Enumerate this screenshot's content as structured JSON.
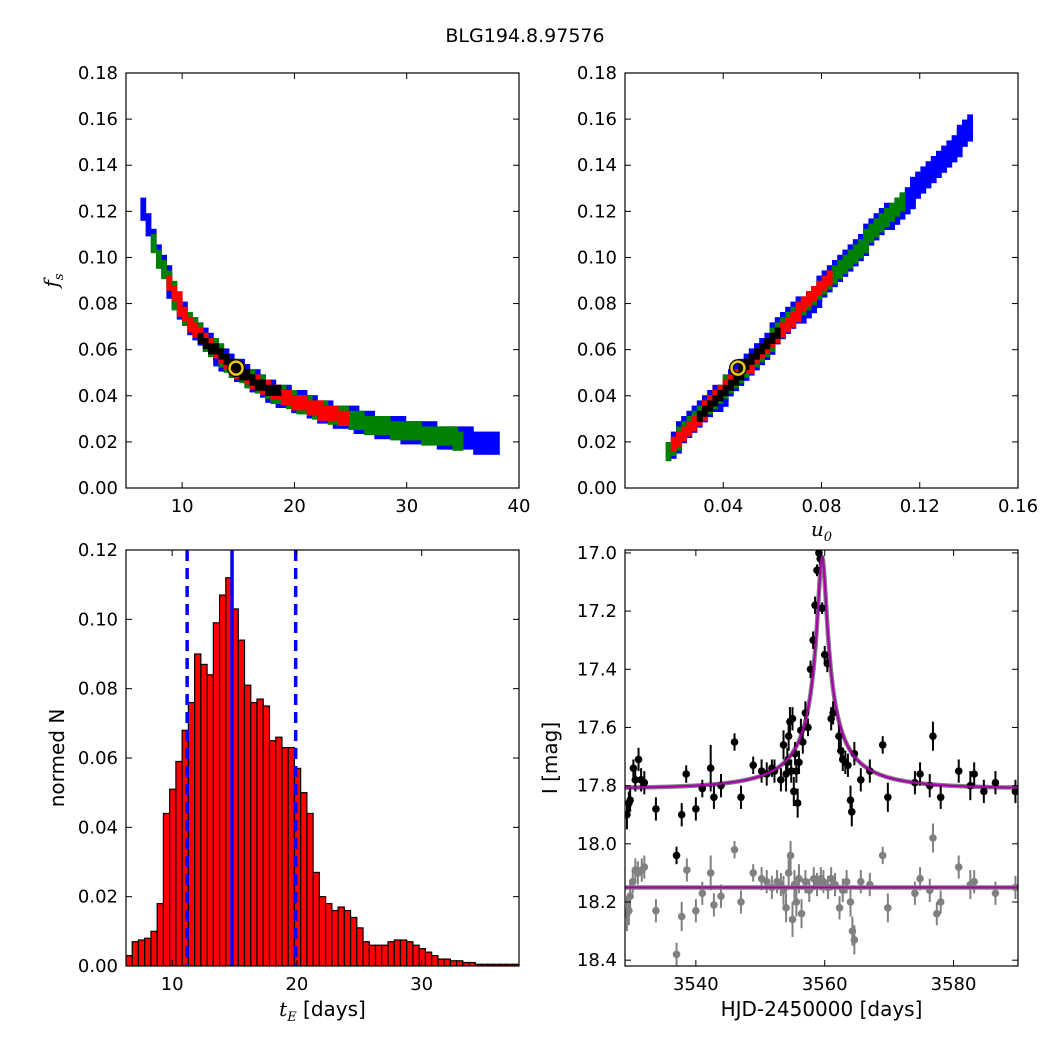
{
  "figure": {
    "title": "BLG194.8.97576"
  },
  "colors": {
    "c1": "#0000ff",
    "c2": "#008000",
    "c3": "#ff0000",
    "c4": "#000000",
    "best": "#e6c619",
    "hist": "#ff0000",
    "line": "#0000ff",
    "model": "#aa00aa",
    "model_under": "#808080",
    "ogle": "#000000",
    "base": "#808080"
  },
  "chart_data": [
    {
      "id": "fs_vs_tE",
      "type": "heatmap",
      "xlabel": "",
      "ylabel": {
        "math": "f",
        "sub": "s"
      },
      "xlim": [
        5,
        40
      ],
      "ylim": [
        0,
        0.18
      ],
      "xticks": [
        10,
        20,
        30,
        40
      ],
      "xtick_labels": [
        "10",
        "20",
        "30",
        "40"
      ],
      "yticks": [
        0,
        0.02,
        0.04,
        0.06,
        0.08,
        0.1,
        0.12,
        0.14,
        0.16,
        0.18
      ],
      "ytick_labels": [
        "0.00",
        "0.02",
        "0.04",
        "0.06",
        "0.08",
        "0.10",
        "0.12",
        "0.14",
        "0.16",
        "0.18"
      ],
      "contour_levels": [
        "c1",
        "c2",
        "c3",
        "c4"
      ],
      "contour_relation": "f_s * t_E = 0.77",
      "contour_x_ranges": {
        "c1": [
          6.3,
          37.6
        ],
        "c2": [
          7.2,
          35.0
        ],
        "c3": [
          8.5,
          24.5
        ],
        "c4": [
          11.5,
          18.5
        ]
      },
      "best_fit": {
        "x": 14.8,
        "y": 0.052
      }
    },
    {
      "id": "fs_vs_u0",
      "type": "heatmap",
      "xlabel": {
        "math": "u",
        "sub": "0"
      },
      "ylabel": "",
      "xlim": [
        0,
        0.16
      ],
      "ylim": [
        0,
        0.18
      ],
      "xticks": [
        0.04,
        0.08,
        0.12,
        0.16
      ],
      "xtick_labels": [
        "0.04",
        "0.08",
        "0.12",
        "0.16"
      ],
      "yticks": [
        0,
        0.02,
        0.04,
        0.06,
        0.08,
        0.1,
        0.12,
        0.14,
        0.16,
        0.18
      ],
      "ytick_labels": [
        "0.00",
        "0.02",
        "0.04",
        "0.06",
        "0.08",
        "0.10",
        "0.12",
        "0.14",
        "0.16",
        "0.18"
      ],
      "contour_levels": [
        "c1",
        "c2",
        "c3",
        "c4"
      ],
      "contour_relation": "f_s = 1.12 * u_0 - 0.0005",
      "contour_x_ranges": {
        "c1": [
          0.018,
          0.141
        ],
        "c2": [
          0.016,
          0.112
        ],
        "c3": [
          0.019,
          0.082
        ],
        "c4": [
          0.03,
          0.062
        ]
      },
      "best_fit": {
        "x": 0.046,
        "y": 0.052
      }
    },
    {
      "id": "tE_histogram",
      "type": "bar",
      "xlabel": {
        "math": "t",
        "sub": "E",
        "suffix": " [days]"
      },
      "ylabel": "normed N",
      "xlim": [
        6.3,
        37.8
      ],
      "ylim": [
        0,
        0.12
      ],
      "xticks": [
        10,
        20,
        30
      ],
      "xtick_labels": [
        "10",
        "20",
        "30"
      ],
      "yticks": [
        0,
        0.02,
        0.04,
        0.06,
        0.08,
        0.1,
        0.12
      ],
      "ytick_labels": [
        "0.00",
        "0.02",
        "0.04",
        "0.06",
        "0.08",
        "0.10",
        "0.12"
      ],
      "bin_start": 6.3,
      "bin_width": 0.5,
      "values": [
        0.003,
        0.007,
        0.0075,
        0.008,
        0.01,
        0.018,
        0.044,
        0.051,
        0.059,
        0.068,
        0.076,
        0.09,
        0.087,
        0.084,
        0.099,
        0.107,
        0.112,
        0.103,
        0.094,
        0.081,
        0.076,
        0.077,
        0.075,
        0.065,
        0.066,
        0.063,
        0.063,
        0.057,
        0.05,
        0.044,
        0.027,
        0.02,
        0.018,
        0.016,
        0.017,
        0.016,
        0.014,
        0.011,
        0.007,
        0.006,
        0.006,
        0.006,
        0.007,
        0.0075,
        0.0075,
        0.007,
        0.006,
        0.005,
        0.004,
        0.003,
        0.002,
        0.002,
        0.0015,
        0.0015,
        0.001,
        0.001,
        0.0005,
        0.0005,
        0.0005,
        0.0005,
        0.0005,
        0.0005,
        0.0005
      ],
      "vlines": [
        {
          "x": 14.8,
          "style": "solid"
        },
        {
          "x": 11.2,
          "style": "dashed"
        },
        {
          "x": 19.9,
          "style": "dashed"
        }
      ]
    },
    {
      "id": "lightcurve",
      "type": "scatter",
      "xlabel": "HJD-2450000 [days]",
      "ylabel": "I [mag]",
      "xlim": [
        3529,
        3590
      ],
      "ylim": [
        18.42,
        16.99
      ],
      "xticks": [
        3540,
        3560,
        3580
      ],
      "xtick_labels": [
        "3540",
        "3560",
        "3580"
      ],
      "yticks": [
        17.0,
        17.2,
        17.4,
        17.6,
        17.8,
        18.0,
        18.2,
        18.4
      ],
      "ytick_labels": [
        "17.0",
        "17.2",
        "17.4",
        "17.6",
        "17.8",
        "18.0",
        "18.2",
        "18.4"
      ],
      "model": {
        "t0": 3559.6,
        "u0": 0.046,
        "tE": 14.8,
        "baseline": 17.81
      },
      "baseline_model": 18.15,
      "series": [
        {
          "role": "ogle",
          "points": [
            [
              3529.3,
              17.9,
              0.05
            ],
            [
              3529.6,
              17.86,
              0.04
            ],
            [
              3529.8,
              17.85,
              0.04
            ],
            [
              3530.3,
              17.74,
              0.03
            ],
            [
              3530.6,
              17.78,
              0.04
            ],
            [
              3531.1,
              17.71,
              0.04
            ],
            [
              3531.5,
              17.78,
              0.04
            ],
            [
              3532.0,
              17.79,
              0.04
            ],
            [
              3533.8,
              17.88,
              0.04
            ],
            [
              3537.0,
              18.04,
              0.03
            ],
            [
              3537.8,
              17.9,
              0.04
            ],
            [
              3538.5,
              17.76,
              0.03
            ],
            [
              3540.0,
              17.88,
              0.04
            ],
            [
              3541.0,
              17.81,
              0.03
            ],
            [
              3542.3,
              17.74,
              0.08
            ],
            [
              3542.8,
              17.84,
              0.04
            ],
            [
              3543.9,
              17.8,
              0.04
            ],
            [
              3546.0,
              17.65,
              0.03
            ],
            [
              3547.0,
              17.84,
              0.04
            ],
            [
              3548.9,
              17.73,
              0.03
            ],
            [
              3550.2,
              17.75,
              0.04
            ],
            [
              3551.0,
              17.76,
              0.04
            ],
            [
              3551.8,
              17.74,
              0.03
            ],
            [
              3552.2,
              17.75,
              0.04
            ],
            [
              3553.2,
              17.78,
              0.04
            ],
            [
              3553.6,
              17.66,
              0.05
            ],
            [
              3554.0,
              17.76,
              0.06
            ],
            [
              3554.2,
              17.72,
              0.05
            ],
            [
              3554.4,
              17.63,
              0.05
            ],
            [
              3554.6,
              17.58,
              0.05
            ],
            [
              3554.8,
              17.75,
              0.04
            ],
            [
              3555.0,
              17.57,
              0.04
            ],
            [
              3555.2,
              17.82,
              0.05
            ],
            [
              3555.4,
              17.69,
              0.04
            ],
            [
              3555.6,
              17.75,
              0.04
            ],
            [
              3555.8,
              17.86,
              0.05
            ],
            [
              3556.0,
              17.72,
              0.04
            ],
            [
              3556.3,
              17.61,
              0.04
            ],
            [
              3556.6,
              17.65,
              0.04
            ],
            [
              3557.0,
              17.55,
              0.04
            ],
            [
              3557.4,
              17.6,
              0.03
            ],
            [
              3557.8,
              17.4,
              0.03
            ],
            [
              3558.2,
              17.3,
              0.03
            ],
            [
              3558.5,
              17.18,
              0.03
            ],
            [
              3558.8,
              17.06,
              0.02
            ],
            [
              3559.1,
              17.0,
              0.02
            ],
            [
              3559.3,
              17.02,
              0.02
            ],
            [
              3559.6,
              17.19,
              0.02
            ],
            [
              3560.0,
              17.35,
              0.03
            ],
            [
              3560.4,
              17.38,
              0.03
            ],
            [
              3561.0,
              17.57,
              0.04
            ],
            [
              3561.3,
              17.55,
              0.04
            ],
            [
              3562.2,
              17.63,
              0.04
            ],
            [
              3562.5,
              17.68,
              0.04
            ],
            [
              3562.8,
              17.71,
              0.04
            ],
            [
              3563.2,
              17.72,
              0.04
            ],
            [
              3563.6,
              17.73,
              0.04
            ],
            [
              3564.0,
              17.85,
              0.05
            ],
            [
              3564.2,
              17.89,
              0.05
            ],
            [
              3564.6,
              17.69,
              0.04
            ],
            [
              3565.6,
              17.78,
              0.04
            ],
            [
              3567.0,
              17.75,
              0.04
            ],
            [
              3569.0,
              17.66,
              0.03
            ],
            [
              3569.8,
              17.84,
              0.05
            ],
            [
              3574.0,
              17.79,
              0.04
            ],
            [
              3574.8,
              17.76,
              0.04
            ],
            [
              3576.3,
              17.8,
              0.04
            ],
            [
              3576.8,
              17.63,
              0.05
            ],
            [
              3578.0,
              17.84,
              0.04
            ],
            [
              3580.8,
              17.75,
              0.04
            ],
            [
              3582.6,
              17.8,
              0.05
            ],
            [
              3583.2,
              17.76,
              0.04
            ],
            [
              3584.7,
              17.82,
              0.04
            ],
            [
              3586.5,
              17.79,
              0.04
            ],
            [
              3589.6,
              17.82,
              0.04
            ]
          ]
        },
        {
          "role": "base",
          "points": [
            [
              3529.3,
              18.24,
              0.06
            ],
            [
              3529.6,
              18.23,
              0.05
            ],
            [
              3529.8,
              18.18,
              0.05
            ],
            [
              3530.2,
              18.13,
              0.04
            ],
            [
              3530.6,
              18.09,
              0.04
            ],
            [
              3531.0,
              18.1,
              0.04
            ],
            [
              3531.6,
              18.09,
              0.04
            ],
            [
              3532.0,
              18.08,
              0.04
            ],
            [
              3533.8,
              18.23,
              0.04
            ],
            [
              3537.0,
              18.38,
              0.04
            ],
            [
              3537.8,
              18.25,
              0.05
            ],
            [
              3538.6,
              18.09,
              0.04
            ],
            [
              3540.0,
              18.23,
              0.04
            ],
            [
              3541.0,
              18.17,
              0.04
            ],
            [
              3542.3,
              18.1,
              0.06
            ],
            [
              3542.8,
              18.21,
              0.04
            ],
            [
              3543.9,
              18.18,
              0.04
            ],
            [
              3546.0,
              18.02,
              0.03
            ],
            [
              3547.0,
              18.2,
              0.04
            ],
            [
              3548.9,
              18.1,
              0.03
            ],
            [
              3550.2,
              18.12,
              0.04
            ],
            [
              3551.0,
              18.13,
              0.04
            ],
            [
              3551.8,
              18.15,
              0.04
            ],
            [
              3552.6,
              18.13,
              0.04
            ],
            [
              3553.2,
              18.14,
              0.04
            ],
            [
              3553.6,
              18.16,
              0.05
            ],
            [
              3554.0,
              18.22,
              0.05
            ],
            [
              3554.4,
              18.1,
              0.05
            ],
            [
              3554.7,
              18.04,
              0.05
            ],
            [
              3555.0,
              18.26,
              0.06
            ],
            [
              3555.3,
              18.14,
              0.05
            ],
            [
              3555.6,
              18.2,
              0.05
            ],
            [
              3556.0,
              18.12,
              0.05
            ],
            [
              3556.4,
              18.24,
              0.05
            ],
            [
              3557.0,
              18.13,
              0.04
            ],
            [
              3557.6,
              18.16,
              0.04
            ],
            [
              3558.3,
              18.12,
              0.04
            ],
            [
              3558.8,
              18.14,
              0.04
            ],
            [
              3559.4,
              18.12,
              0.04
            ],
            [
              3559.8,
              18.13,
              0.04
            ],
            [
              3560.5,
              18.15,
              0.04
            ],
            [
              3561.0,
              18.12,
              0.04
            ],
            [
              3561.6,
              18.14,
              0.04
            ],
            [
              3562.3,
              18.22,
              0.04
            ],
            [
              3562.8,
              18.16,
              0.04
            ],
            [
              3563.4,
              18.13,
              0.04
            ],
            [
              3564.0,
              18.2,
              0.05
            ],
            [
              3564.3,
              18.3,
              0.05
            ],
            [
              3564.6,
              18.33,
              0.05
            ],
            [
              3565.6,
              18.13,
              0.04
            ],
            [
              3567.0,
              18.14,
              0.04
            ],
            [
              3569.0,
              18.04,
              0.03
            ],
            [
              3569.8,
              18.22,
              0.05
            ],
            [
              3574.0,
              18.17,
              0.04
            ],
            [
              3574.8,
              18.12,
              0.04
            ],
            [
              3576.3,
              18.16,
              0.04
            ],
            [
              3576.8,
              17.98,
              0.05
            ],
            [
              3577.4,
              18.24,
              0.04
            ],
            [
              3578.0,
              18.2,
              0.04
            ],
            [
              3580.8,
              18.08,
              0.04
            ],
            [
              3582.6,
              18.14,
              0.05
            ],
            [
              3583.2,
              18.13,
              0.04
            ],
            [
              3586.5,
              18.17,
              0.04
            ],
            [
              3589.6,
              18.15,
              0.04
            ]
          ]
        }
      ]
    }
  ]
}
